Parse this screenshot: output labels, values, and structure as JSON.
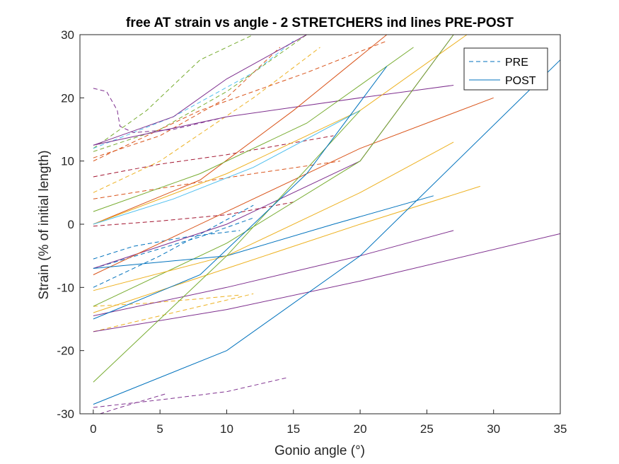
{
  "chart_data": {
    "type": "line",
    "title": "free AT strain vs angle - 2 STRETCHERS ind lines PRE-POST",
    "xlabel": "Gonio angle (°)",
    "ylabel": "Strain (% of initial length)",
    "xlim": [
      -1,
      35
    ],
    "ylim": [
      -30,
      30
    ],
    "xticks": [
      0,
      5,
      10,
      15,
      20,
      25,
      30,
      35
    ],
    "yticks": [
      -30,
      -20,
      -10,
      0,
      10,
      20,
      30
    ],
    "grid": false,
    "legend": {
      "placement": "top-right",
      "entries": [
        {
          "label": "PRE",
          "style": "dashed",
          "color": "#0072BD"
        },
        {
          "label": "POST",
          "style": "solid",
          "color": "#0072BD"
        }
      ]
    },
    "series": [
      {
        "group": "PRE",
        "style": "dashed",
        "color": "#77AC30",
        "x": [
          0,
          4,
          8,
          12
        ],
        "y": [
          12,
          18,
          26,
          32
        ]
      },
      {
        "group": "PRE",
        "style": "dashed",
        "color": "#4DBEEE",
        "x": [
          0,
          6,
          12,
          15
        ],
        "y": [
          12,
          17,
          24,
          29
        ]
      },
      {
        "group": "PRE",
        "style": "dashed",
        "color": "#77AC30",
        "x": [
          0,
          5,
          10,
          16
        ],
        "y": [
          11.5,
          15,
          21,
          30
        ]
      },
      {
        "group": "PRE",
        "style": "dashed",
        "color": "#7E2F8E",
        "x": [
          0,
          1,
          1.8,
          2,
          3,
          6,
          10
        ],
        "y": [
          21.5,
          21,
          18,
          15.5,
          14.5,
          15,
          17
        ]
      },
      {
        "group": "PRE",
        "style": "dashed",
        "color": "#D95319",
        "x": [
          0,
          5,
          10,
          14
        ],
        "y": [
          10.5,
          14,
          20,
          28
        ]
      },
      {
        "group": "PRE",
        "style": "dashed",
        "color": "#EDB120",
        "x": [
          0,
          5,
          12,
          17
        ],
        "y": [
          5,
          10,
          20,
          28
        ]
      },
      {
        "group": "PRE",
        "style": "dashed",
        "color": "#A2142F",
        "x": [
          0,
          5,
          10,
          18
        ],
        "y": [
          7.5,
          9.5,
          11,
          14
        ]
      },
      {
        "group": "PRE",
        "style": "dashed",
        "color": "#D95319",
        "x": [
          0,
          6,
          12,
          18.5
        ],
        "y": [
          4,
          6,
          8,
          10
        ]
      },
      {
        "group": "PRE",
        "style": "dashed",
        "color": "#A2142F",
        "x": [
          0,
          5,
          10,
          15
        ],
        "y": [
          -0.3,
          0.5,
          1.5,
          3.5
        ]
      },
      {
        "group": "PRE",
        "style": "dashed",
        "color": "#0072BD",
        "x": [
          0,
          3,
          7,
          11
        ],
        "y": [
          -5.5,
          -3.5,
          -2,
          -1
        ]
      },
      {
        "group": "PRE",
        "style": "dashed",
        "color": "#0072BD",
        "x": [
          0,
          5,
          12
        ],
        "y": [
          -10,
          -5,
          3
        ]
      },
      {
        "group": "PRE",
        "style": "dashed",
        "color": "#EDB120",
        "x": [
          0,
          4,
          8,
          11
        ],
        "y": [
          -13,
          -12.5,
          -11.8,
          -11.2
        ]
      },
      {
        "group": "PRE",
        "style": "dashed",
        "color": "#EDB120",
        "x": [
          0,
          4,
          8,
          12
        ],
        "y": [
          -17,
          -15,
          -13,
          -11
        ]
      },
      {
        "group": "PRE",
        "style": "dashed",
        "color": "#7E2F8E",
        "x": [
          0,
          5,
          10,
          14.5
        ],
        "y": [
          -29,
          -27.8,
          -26.5,
          -24.3
        ]
      },
      {
        "group": "PRE",
        "style": "dashed",
        "color": "#7E2F8E",
        "x": [
          0.5,
          2,
          5.5
        ],
        "y": [
          -30,
          -29,
          -26.8
        ]
      },
      {
        "group": "PRE",
        "style": "dashed",
        "color": "#0072BD",
        "x": [
          0,
          4,
          8,
          12
        ],
        "y": [
          -7,
          -4.5,
          -2,
          1
        ]
      },
      {
        "group": "PRE",
        "style": "dashed",
        "color": "#D95319",
        "x": [
          0,
          8,
          16,
          22
        ],
        "y": [
          10,
          18,
          24,
          29
        ]
      },
      {
        "group": "POST",
        "style": "solid",
        "color": "#7E2F8E",
        "x": [
          0,
          6,
          10,
          16
        ],
        "y": [
          12.5,
          17,
          23,
          30
        ]
      },
      {
        "group": "POST",
        "style": "solid",
        "color": "#7E2F8E",
        "x": [
          0,
          10,
          20,
          27
        ],
        "y": [
          12.5,
          17,
          20,
          22
        ]
      },
      {
        "group": "POST",
        "style": "solid",
        "color": "#D95319",
        "x": [
          0,
          8,
          15,
          22
        ],
        "y": [
          0,
          7,
          18,
          30
        ]
      },
      {
        "group": "POST",
        "style": "solid",
        "color": "#EDB120",
        "x": [
          0,
          10,
          20,
          28
        ],
        "y": [
          0,
          8,
          18,
          30
        ]
      },
      {
        "group": "POST",
        "style": "solid",
        "color": "#4DBEEE",
        "x": [
          0,
          6,
          12,
          20
        ],
        "y": [
          0,
          4,
          9,
          18
        ]
      },
      {
        "group": "POST",
        "style": "solid",
        "color": "#77AC30",
        "x": [
          0,
          8,
          16,
          24
        ],
        "y": [
          2,
          8,
          16,
          28
        ]
      },
      {
        "group": "POST",
        "style": "solid",
        "color": "#7E2F8E",
        "x": [
          0,
          10,
          20,
          27
        ],
        "y": [
          -7,
          0,
          10,
          30
        ]
      },
      {
        "group": "POST",
        "style": "solid",
        "color": "#D95319",
        "x": [
          0,
          10,
          20,
          30
        ],
        "y": [
          -8,
          2,
          12,
          20
        ]
      },
      {
        "group": "POST",
        "style": "solid",
        "color": "#77AC30",
        "x": [
          0,
          10,
          20,
          27
        ],
        "y": [
          -13,
          -3,
          10,
          30
        ]
      },
      {
        "group": "POST",
        "style": "solid",
        "color": "#0072BD",
        "x": [
          0,
          10,
          18,
          25.5
        ],
        "y": [
          -7,
          -5,
          0,
          4.5
        ]
      },
      {
        "group": "POST",
        "style": "solid",
        "color": "#EDB120",
        "x": [
          0,
          10,
          20,
          27
        ],
        "y": [
          -10.5,
          -5,
          5,
          13
        ]
      },
      {
        "group": "POST",
        "style": "solid",
        "color": "#EDB120",
        "x": [
          0,
          10,
          20,
          29
        ],
        "y": [
          -14,
          -7,
          0,
          6
        ]
      },
      {
        "group": "POST",
        "style": "solid",
        "color": "#7E2F8E",
        "x": [
          0,
          10,
          20,
          27
        ],
        "y": [
          -14.5,
          -10,
          -5,
          -1
        ]
      },
      {
        "group": "POST",
        "style": "solid",
        "color": "#7E2F8E",
        "x": [
          0,
          10,
          20,
          35
        ],
        "y": [
          -17,
          -13.5,
          -9,
          -1.5
        ]
      },
      {
        "group": "POST",
        "style": "solid",
        "color": "#0072BD",
        "x": [
          0,
          10,
          20,
          35
        ],
        "y": [
          -28.5,
          -20,
          -5,
          26
        ]
      },
      {
        "group": "POST",
        "style": "solid",
        "color": "#77AC30",
        "x": [
          0,
          5,
          10,
          20
        ],
        "y": [
          -25,
          -15,
          -5,
          18
        ]
      },
      {
        "group": "POST",
        "style": "solid",
        "color": "#0072BD",
        "x": [
          0,
          8,
          16,
          22
        ],
        "y": [
          -15,
          -8,
          8,
          25
        ]
      }
    ]
  }
}
